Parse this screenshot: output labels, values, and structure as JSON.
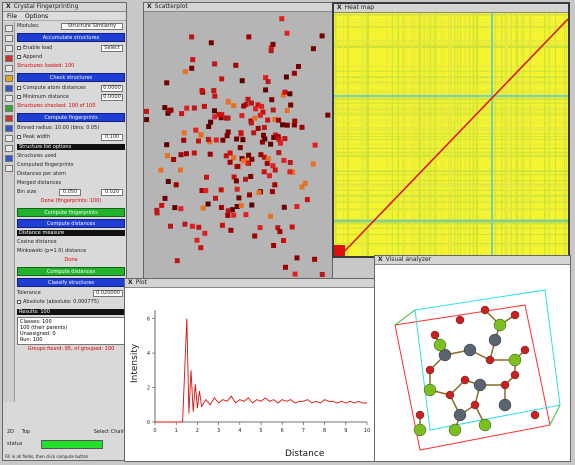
{
  "left_panel": {
    "title": "Crystal Fingerprinting",
    "menu": [
      "File",
      "Options"
    ],
    "module_label": "Modules:",
    "module_value": "Structure Similarity",
    "sec1_button": "Accumulate structures",
    "row_enable": "Enable load",
    "row_enable_btn": "Select",
    "row_append": "Append",
    "red_text1": "Structures loaded: 100",
    "sec2_button": "Check structures",
    "row_cutoff": "Compute atom distances",
    "row_cutoff_val": "0.0000",
    "row_tolerance": "Minimum distance",
    "row_tolerance_val": "0.0000",
    "red_text2": "Structures checked: 100 of 100",
    "sec3_button": "Compute fingerprints",
    "row_fp1": "Binned radius: 10.00 (bins: 0.05)",
    "row_fp2": "Peak width",
    "row_fp2_val": "0.100",
    "row_list": [
      "Structure list options",
      "Structures used",
      "Computed fingerprints",
      "Distances per atom",
      "Merged distances"
    ],
    "row_binsize": "Bin size",
    "row_binsize_val": "0.050",
    "row_peak": "Peak width",
    "row_peak_val": "0.020",
    "red_text3": "Done (fingerprints: 100)",
    "sec4_green": "Compute fingerprints",
    "sec5_button": "Compute distances",
    "row_dist_list": [
      "Distance measure",
      "Cosine distance",
      "Minkowski (p=1.0) distance"
    ],
    "red_text4": "Done",
    "sec6_green": "Compute distances",
    "sec7_button": "Classify structures",
    "row_tol": "Tolerance",
    "row_tol_val": "0.020000",
    "row_absolute": "Absolute",
    "row_absolute_val": "(absolute: 0.000775)",
    "row_results": [
      "Results: 100",
      "Classes: 100",
      "100 (their parents)",
      "Unassigned: 0",
      "Run: 100"
    ],
    "red_text5": "Groups found: 95, of grouped: 100",
    "status_left": "2D",
    "status_mid": "Top",
    "status_right": "Select Chain",
    "status2_left": "status",
    "footer_text": "Fill in all fields, then click compute button"
  },
  "scatter_window": {
    "title": "Scatterplot"
  },
  "heat_window": {
    "title": "Heat map"
  },
  "plot_window": {
    "title": "Plot",
    "ylabel": "Intensity",
    "xlabel": "Distance",
    "y_ticks": [
      "0",
      "2",
      "4",
      "6"
    ],
    "x_ticks": [
      "0",
      "1",
      "2",
      "3",
      "4",
      "5",
      "6",
      "7",
      "8",
      "9",
      "10"
    ]
  },
  "crystal_window": {
    "title": "Visual analyzer"
  },
  "chart_data": {
    "type": "line",
    "x": [
      0.0,
      1.0,
      1.3,
      1.5,
      1.6,
      1.7,
      1.8,
      1.9,
      2.0,
      2.1,
      2.2,
      2.4,
      2.6,
      2.8,
      3.0,
      3.2,
      3.4,
      3.6,
      3.8,
      4.0,
      4.2,
      4.4,
      4.6,
      4.8,
      5.0,
      5.2,
      5.4,
      5.6,
      5.8,
      6.0,
      6.2,
      6.4,
      6.6,
      6.8,
      7.0,
      7.2,
      7.4,
      7.6,
      7.8,
      8.0,
      8.2,
      8.4,
      8.6,
      8.8,
      9.0,
      9.2,
      9.4,
      9.6,
      9.8,
      10.0
    ],
    "y": [
      0,
      0,
      0,
      6.0,
      0.5,
      3.0,
      0.6,
      2.2,
      0.8,
      1.8,
      0.9,
      1.3,
      1.0,
      1.4,
      1.1,
      1.3,
      1.2,
      1.5,
      1.1,
      1.3,
      1.2,
      1.4,
      1.1,
      1.3,
      1.2,
      1.4,
      1.2,
      1.3,
      1.1,
      1.3,
      1.2,
      1.3,
      1.1,
      1.2,
      1.2,
      1.3,
      1.1,
      1.2,
      1.1,
      1.3,
      1.2,
      1.2,
      1.1,
      1.2,
      1.1,
      1.2,
      1.1,
      1.2,
      1.1,
      1.1
    ],
    "xlabel": "Distance",
    "ylabel": "Intensity",
    "xlim": [
      0,
      10
    ],
    "ylim": [
      0,
      6.5
    ]
  }
}
